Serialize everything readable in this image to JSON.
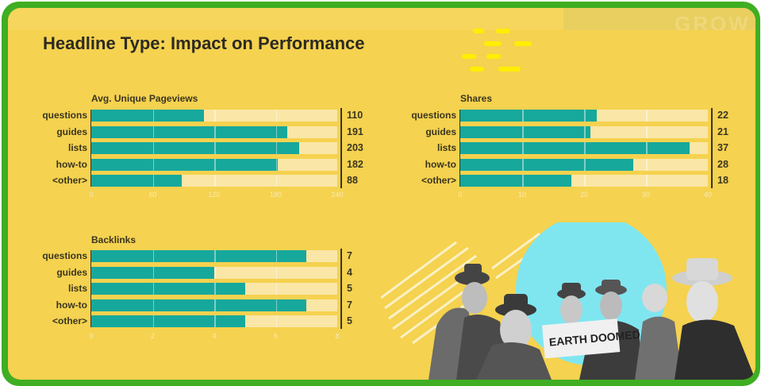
{
  "title": "Headline Type: Impact on Performance",
  "watermark": "GROW",
  "colors": {
    "bar": "#17a89c",
    "track": "#fae6a6",
    "background": "#f5d24f",
    "border": "#3fae22"
  },
  "photo": {
    "sign_text": "EARTH DOOMED"
  },
  "chart_data": [
    {
      "type": "bar",
      "title": "Avg. Unique Pageviews",
      "categories": [
        "questions",
        "guides",
        "lists",
        "how-to",
        "<other>"
      ],
      "values": [
        110,
        191,
        203,
        182,
        88
      ],
      "value_labels": [
        "110",
        "191",
        "203",
        "182",
        "88"
      ],
      "xlim": [
        0,
        240
      ],
      "ticks": [
        "0",
        "60",
        "120",
        "180",
        "240"
      ],
      "tick_values": [
        0,
        60,
        120,
        180,
        240
      ]
    },
    {
      "type": "bar",
      "title": "Shares",
      "categories": [
        "questions",
        "guides",
        "lists",
        "how-to",
        "<other>"
      ],
      "values": [
        22,
        21,
        37,
        28,
        18
      ],
      "value_labels": [
        "22",
        "21",
        "37",
        "28",
        "18"
      ],
      "xlim": [
        0,
        40
      ],
      "ticks": [
        "0",
        "10",
        "20",
        "30",
        "40"
      ],
      "tick_values": [
        0,
        10,
        20,
        30,
        40
      ]
    },
    {
      "type": "bar",
      "title": "Backlinks",
      "categories": [
        "questions",
        "guides",
        "lists",
        "how-to",
        "<other>"
      ],
      "values": [
        7,
        4,
        5,
        7,
        5
      ],
      "value_labels": [
        "7",
        "4",
        "5",
        "7",
        "5"
      ],
      "xlim": [
        0,
        8
      ],
      "ticks": [
        "0",
        "2",
        "4",
        "6",
        "8"
      ],
      "tick_values": [
        0,
        2,
        4,
        6,
        8
      ]
    }
  ]
}
